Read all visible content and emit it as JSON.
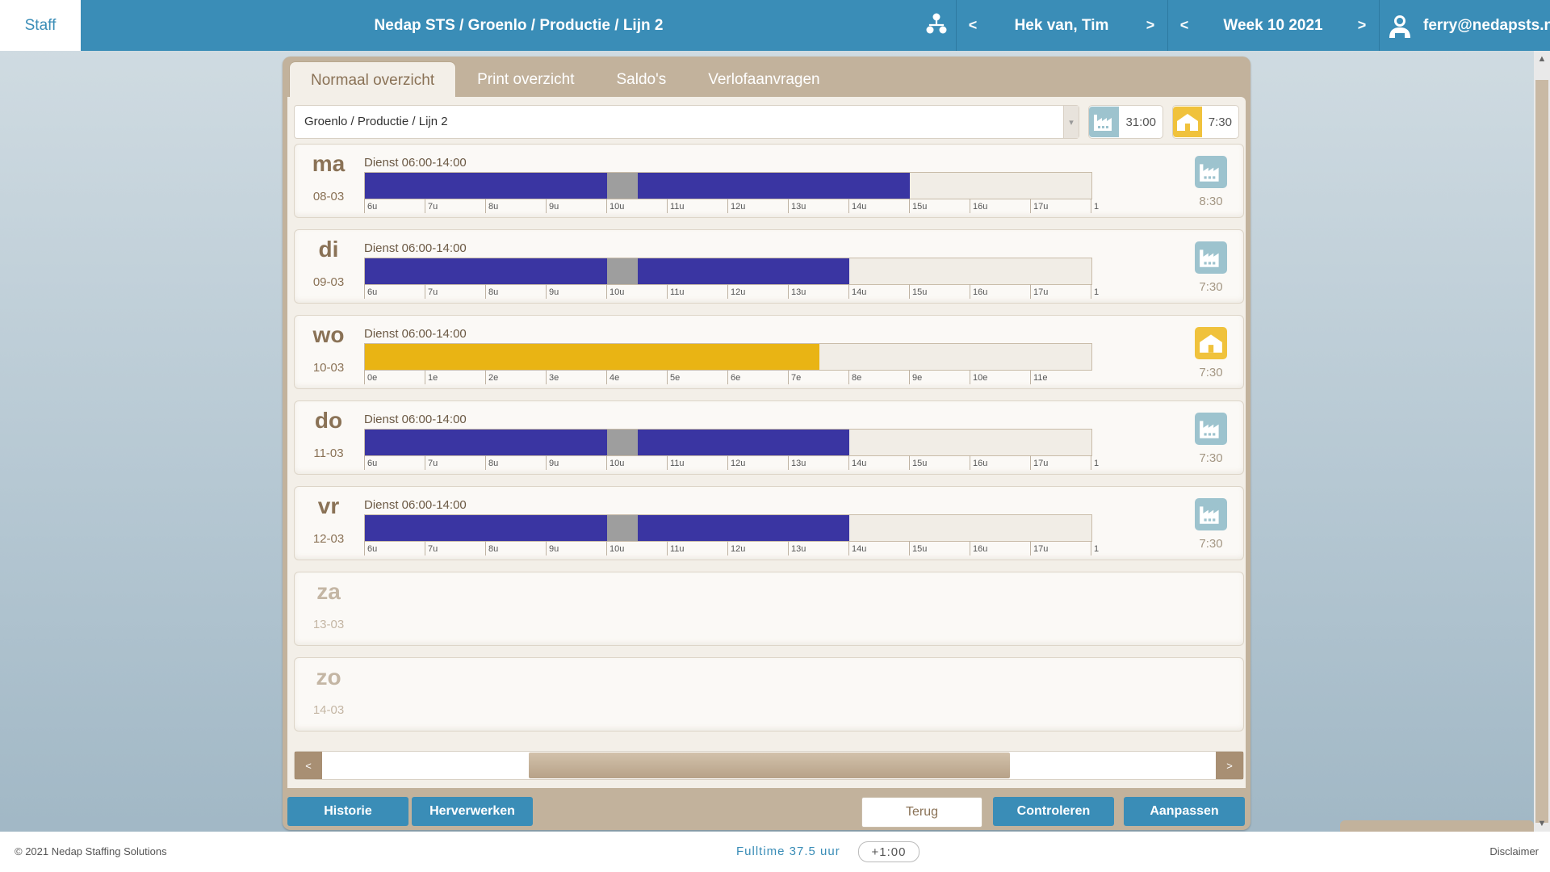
{
  "topbar": {
    "brand": "Staff",
    "breadcrumb": "Nedap STS / Groenlo / Productie / Lijn 2",
    "person": "Hek van, Tim",
    "week": "Week 10 2021",
    "user": "ferry@nedapsts.nl",
    "prev": "<",
    "next": ">"
  },
  "tabs": [
    "Normaal overzicht",
    "Print overzicht",
    "Saldo's",
    "Verlofaanvragen"
  ],
  "active_tab": 0,
  "department_select": {
    "value": "Groenlo / Productie / Lijn 2"
  },
  "totals": {
    "work": "31:00",
    "home": "7:30"
  },
  "hour_ticks": [
    "6u",
    "7u",
    "8u",
    "9u",
    "10u",
    "11u",
    "12u",
    "13u",
    "14u",
    "15u",
    "16u",
    "17u",
    "1"
  ],
  "day_ticks": [
    "0e",
    "1e",
    "2e",
    "3e",
    "4e",
    "5e",
    "6e",
    "7e",
    "8e",
    "9e",
    "10e",
    "11e"
  ],
  "days": [
    {
      "name": "ma",
      "date": "08-03",
      "shift": "Dienst 06:00-14:00",
      "type": "factory",
      "hours": "8:30",
      "work_until": 15.0
    },
    {
      "name": "di",
      "date": "09-03",
      "shift": "Dienst 06:00-14:00",
      "type": "factory",
      "hours": "7:30",
      "work_until": 14.0
    },
    {
      "name": "wo",
      "date": "10-03",
      "shift": "Dienst 06:00-14:00",
      "type": "home",
      "hours": "7:30",
      "fill_fraction": 0.625
    },
    {
      "name": "do",
      "date": "11-03",
      "shift": "Dienst 06:00-14:00",
      "type": "factory",
      "hours": "7:30",
      "work_until": 14.0
    },
    {
      "name": "vr",
      "date": "12-03",
      "shift": "Dienst 06:00-14:00",
      "type": "factory",
      "hours": "7:30",
      "work_until": 14.0
    },
    {
      "name": "za",
      "date": "13-03",
      "shift": "",
      "type": "none",
      "hours": ""
    },
    {
      "name": "zo",
      "date": "14-03",
      "shift": "",
      "type": "none",
      "hours": ""
    }
  ],
  "break_hours": [
    10.0,
    10.5
  ],
  "buttons": {
    "history": "Historie",
    "reprocess": "Herverwerken",
    "back": "Terug",
    "check": "Controleren",
    "adjust": "Aanpassen"
  },
  "footer": {
    "copyright": "© 2021 Nedap Staffing Solutions",
    "contract": "Fulltime 37.5 uur",
    "balance": "+1:00",
    "disclaimer": "Disclaimer"
  },
  "colors": {
    "primary": "#3a8db7",
    "work_bar": "#3a35a2",
    "break_bar": "#9e9e9e",
    "home_bar": "#e9b414",
    "panel": "#c2b29c"
  },
  "icons": {
    "org": "org-chart-icon",
    "user": "user-icon",
    "factory": "factory-icon",
    "home": "home-icon"
  }
}
